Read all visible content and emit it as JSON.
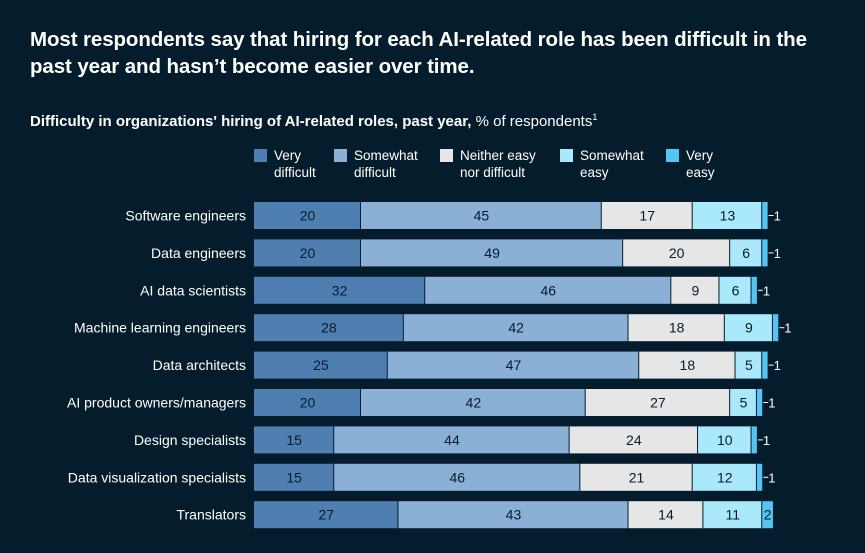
{
  "headline": "Most respondents say that hiring for each AI-related role has been difficult in the past year and hasn’t become easier over time.",
  "subtitle": {
    "bold": "Difficulty in organizations' hiring of AI-related roles, past year,",
    "normal": " % of respondents",
    "footnote": "1"
  },
  "colors": {
    "background": "#051c2c",
    "very_difficult": "#4e7fb0",
    "somewhat_difficult": "#8bb0d6",
    "neither": "#e6e6e6",
    "somewhat_easy": "#aae9fb",
    "very_easy": "#54c5f2"
  },
  "chart_data": {
    "type": "bar",
    "orientation": "horizontal",
    "stacked": true,
    "categories": [
      "Software engineers",
      "Data engineers",
      "AI data scientists",
      "Machine learning engineers",
      "Data architects",
      "AI product owners/managers",
      "Design specialists",
      "Data visualization specialists",
      "Translators"
    ],
    "series": [
      {
        "name": "Very difficult",
        "legend_lines": [
          "Very",
          "difficult"
        ],
        "color": "#4e7fb0",
        "values": [
          20,
          20,
          32,
          28,
          25,
          20,
          15,
          15,
          27
        ]
      },
      {
        "name": "Somewhat difficult",
        "legend_lines": [
          "Somewhat",
          "difficult"
        ],
        "color": "#8bb0d6",
        "values": [
          45,
          49,
          46,
          42,
          47,
          42,
          44,
          46,
          43
        ]
      },
      {
        "name": "Neither easy nor difficult",
        "legend_lines": [
          "Neither easy",
          "nor difficult"
        ],
        "color": "#e6e6e6",
        "values": [
          17,
          20,
          9,
          18,
          18,
          27,
          24,
          21,
          14
        ]
      },
      {
        "name": "Somewhat easy",
        "legend_lines": [
          "Somewhat",
          "easy"
        ],
        "color": "#aae9fb",
        "values": [
          13,
          6,
          6,
          9,
          5,
          5,
          10,
          12,
          11
        ]
      },
      {
        "name": "Very easy",
        "legend_lines": [
          "Very",
          "easy"
        ],
        "color": "#54c5f2",
        "values": [
          1,
          1,
          1,
          1,
          1,
          1,
          1,
          1,
          2
        ]
      }
    ],
    "legend_position": "top",
    "grid": false
  }
}
